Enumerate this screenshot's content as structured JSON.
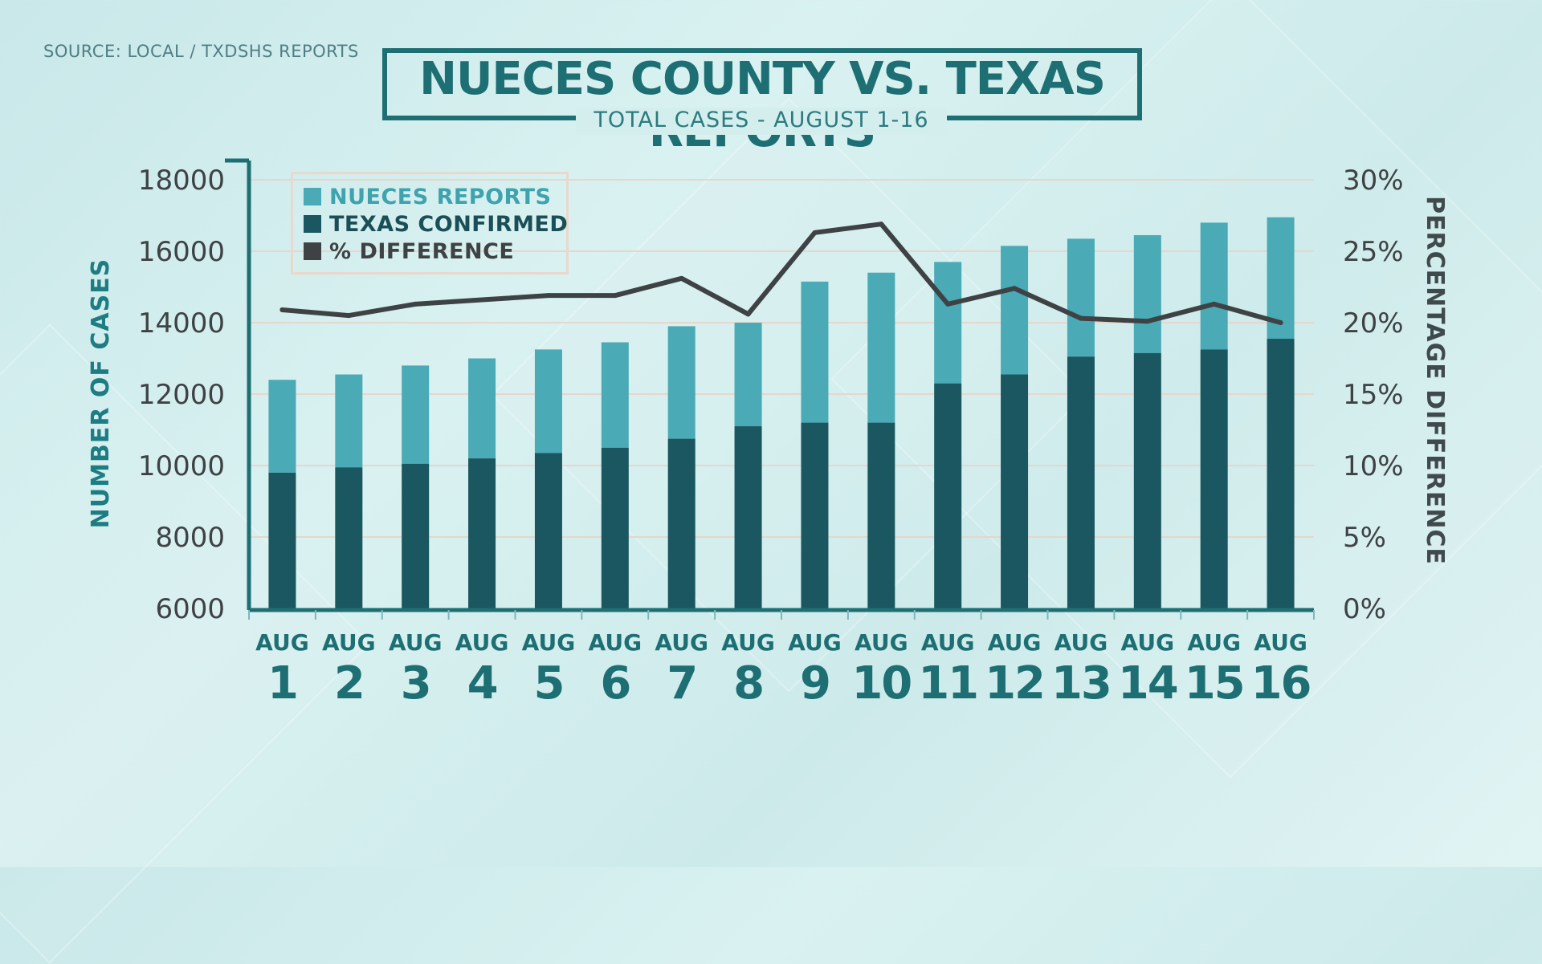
{
  "source": "SOURCE: LOCAL / TXDSHS REPORTS",
  "colors": {
    "nueces": "#4aaab5",
    "texas": "#1a5760",
    "difference": "#3e4244",
    "accent": "#1d6f73"
  },
  "chart_data": {
    "type": "bar",
    "stacked": true,
    "title": "NUECES COUNTY VS. TEXAS REPORTS",
    "subtitle": "TOTAL CASES  - AUGUST 1-16",
    "ylabel": "NUMBER OF CASES",
    "y2label": "PERCENTAGE DIFFERENCE",
    "ylim": [
      6000,
      18000
    ],
    "y2lim": [
      0,
      30
    ],
    "yticks": [
      "18000",
      "16000",
      "14000",
      "12000",
      "10000",
      "8000",
      "6000"
    ],
    "y2ticks": [
      "30%",
      "25%",
      "20%",
      "15%",
      "10%",
      "5%",
      "0%"
    ],
    "grid": true,
    "legend_position": "top-left",
    "categories": [
      {
        "month": "AUG",
        "day": "1"
      },
      {
        "month": "AUG",
        "day": "2"
      },
      {
        "month": "AUG",
        "day": "3"
      },
      {
        "month": "AUG",
        "day": "4"
      },
      {
        "month": "AUG",
        "day": "5"
      },
      {
        "month": "AUG",
        "day": "6"
      },
      {
        "month": "AUG",
        "day": "7"
      },
      {
        "month": "AUG",
        "day": "8"
      },
      {
        "month": "AUG",
        "day": "9"
      },
      {
        "month": "AUG",
        "day": "10"
      },
      {
        "month": "AUG",
        "day": "11"
      },
      {
        "month": "AUG",
        "day": "12"
      },
      {
        "month": "AUG",
        "day": "13"
      },
      {
        "month": "AUG",
        "day": "14"
      },
      {
        "month": "AUG",
        "day": "15"
      },
      {
        "month": "AUG",
        "day": "16"
      }
    ],
    "series": [
      {
        "name": "TEXAS CONFIRMED",
        "type": "bar",
        "values": [
          9800,
          9950,
          10050,
          10200,
          10350,
          10500,
          10750,
          11100,
          11200,
          11200,
          12300,
          12550,
          13050,
          13150,
          13250,
          13550
        ]
      },
      {
        "name": "NUECES REPORTS",
        "type": "bar",
        "values": [
          12400,
          12550,
          12800,
          13000,
          13250,
          13450,
          13900,
          14000,
          15150,
          15400,
          15700,
          16150,
          16350,
          16450,
          16800,
          16950
        ]
      },
      {
        "name": "% DIFFERENCE",
        "type": "line",
        "axis": "right",
        "values": [
          20.9,
          20.5,
          21.3,
          21.6,
          21.9,
          21.9,
          23.1,
          20.6,
          26.3,
          26.9,
          21.3,
          22.4,
          20.3,
          20.1,
          21.3,
          20.0
        ]
      }
    ]
  }
}
